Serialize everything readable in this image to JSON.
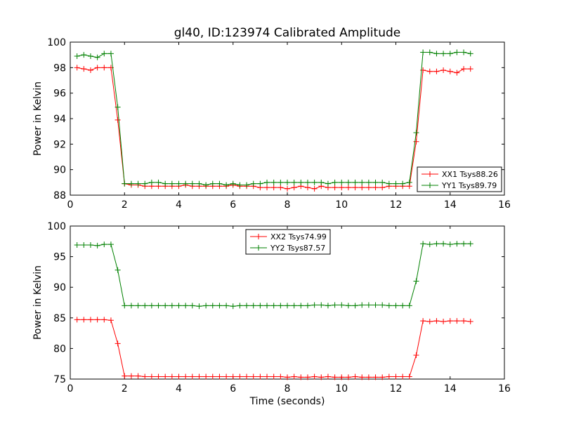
{
  "chart_data": [
    {
      "type": "line",
      "title": "gl40, ID:123974 Calibrated Amplitude",
      "xlabel": "",
      "ylabel": "Power in Kelvin",
      "xlim": [
        0,
        16
      ],
      "ylim": [
        88,
        100
      ],
      "xticks": [
        "0",
        "2",
        "4",
        "6",
        "8",
        "10",
        "12",
        "14",
        "16"
      ],
      "yticks": [
        "88",
        "90",
        "92",
        "94",
        "96",
        "98",
        "100"
      ],
      "grid": false,
      "legend_position": "lower-right",
      "x": [
        0.25,
        0.5,
        0.75,
        1.0,
        1.25,
        1.5,
        1.75,
        2.0,
        2.25,
        2.5,
        2.75,
        3.0,
        3.25,
        3.5,
        3.75,
        4.0,
        4.25,
        4.5,
        4.75,
        5.0,
        5.25,
        5.5,
        5.75,
        6.0,
        6.25,
        6.5,
        6.75,
        7.0,
        7.25,
        7.5,
        7.75,
        8.0,
        8.25,
        8.5,
        8.75,
        9.0,
        9.25,
        9.5,
        9.75,
        10.0,
        10.25,
        10.5,
        10.75,
        11.0,
        11.25,
        11.5,
        11.75,
        12.0,
        12.25,
        12.5,
        12.75,
        13.0,
        13.25,
        13.5,
        13.75,
        14.0,
        14.25,
        14.5,
        14.75
      ],
      "series": [
        {
          "name": "XX1 Tsys88.26",
          "color": "#ff0000",
          "values": [
            98.0,
            97.9,
            97.8,
            98.0,
            98.0,
            98.0,
            93.9,
            88.9,
            88.8,
            88.8,
            88.7,
            88.7,
            88.7,
            88.7,
            88.7,
            88.7,
            88.8,
            88.7,
            88.7,
            88.7,
            88.7,
            88.7,
            88.7,
            88.8,
            88.7,
            88.7,
            88.7,
            88.6,
            88.6,
            88.6,
            88.6,
            88.5,
            88.6,
            88.7,
            88.6,
            88.5,
            88.7,
            88.6,
            88.6,
            88.6,
            88.6,
            88.6,
            88.6,
            88.6,
            88.6,
            88.6,
            88.7,
            88.7,
            88.7,
            88.7,
            92.2,
            97.8,
            97.7,
            97.7,
            97.8,
            97.7,
            97.6,
            97.9,
            97.9
          ]
        },
        {
          "name": "YY1 Tsys89.79",
          "color": "#008000",
          "values": [
            98.9,
            99.0,
            98.9,
            98.8,
            99.1,
            99.1,
            94.9,
            88.9,
            88.9,
            88.9,
            88.9,
            89.0,
            89.0,
            88.9,
            88.9,
            88.9,
            88.9,
            88.9,
            88.9,
            88.8,
            88.9,
            88.9,
            88.8,
            88.9,
            88.8,
            88.8,
            88.9,
            88.9,
            89.0,
            89.0,
            89.0,
            89.0,
            89.0,
            89.0,
            89.0,
            89.0,
            89.0,
            88.9,
            89.0,
            89.0,
            89.0,
            89.0,
            89.0,
            89.0,
            89.0,
            89.0,
            88.9,
            88.9,
            88.9,
            89.0,
            92.9,
            99.2,
            99.2,
            99.1,
            99.1,
            99.1,
            99.2,
            99.2,
            99.1
          ]
        }
      ]
    },
    {
      "type": "line",
      "title": "",
      "xlabel": "Time (seconds)",
      "ylabel": "Power in Kelvin",
      "xlim": [
        0,
        16
      ],
      "ylim": [
        75,
        100
      ],
      "xticks": [
        "0",
        "2",
        "4",
        "6",
        "8",
        "10",
        "12",
        "14",
        "16"
      ],
      "yticks": [
        "75",
        "80",
        "85",
        "90",
        "95",
        "100"
      ],
      "grid": false,
      "legend_position": "upper-center",
      "x": [
        0.25,
        0.5,
        0.75,
        1.0,
        1.25,
        1.5,
        1.75,
        2.0,
        2.25,
        2.5,
        2.75,
        3.0,
        3.25,
        3.5,
        3.75,
        4.0,
        4.25,
        4.5,
        4.75,
        5.0,
        5.25,
        5.5,
        5.75,
        6.0,
        6.25,
        6.5,
        6.75,
        7.0,
        7.25,
        7.5,
        7.75,
        8.0,
        8.25,
        8.5,
        8.75,
        9.0,
        9.25,
        9.5,
        9.75,
        10.0,
        10.25,
        10.5,
        10.75,
        11.0,
        11.25,
        11.5,
        11.75,
        12.0,
        12.25,
        12.5,
        12.75,
        13.0,
        13.25,
        13.5,
        13.75,
        14.0,
        14.25,
        14.5,
        14.75
      ],
      "series": [
        {
          "name": "XX2 Tsys74.99",
          "color": "#ff0000",
          "values": [
            84.7,
            84.7,
            84.7,
            84.7,
            84.7,
            84.6,
            80.8,
            75.5,
            75.5,
            75.5,
            75.4,
            75.4,
            75.4,
            75.4,
            75.4,
            75.4,
            75.4,
            75.4,
            75.4,
            75.4,
            75.4,
            75.4,
            75.4,
            75.4,
            75.4,
            75.4,
            75.4,
            75.4,
            75.4,
            75.4,
            75.4,
            75.3,
            75.4,
            75.3,
            75.3,
            75.4,
            75.3,
            75.4,
            75.3,
            75.3,
            75.3,
            75.4,
            75.3,
            75.3,
            75.3,
            75.3,
            75.4,
            75.4,
            75.4,
            75.4,
            78.9,
            84.5,
            84.4,
            84.5,
            84.4,
            84.5,
            84.5,
            84.5,
            84.4
          ]
        },
        {
          "name": "YY2 Tsys87.57",
          "color": "#008000",
          "values": [
            96.9,
            96.9,
            96.9,
            96.8,
            97.0,
            97.0,
            92.8,
            87.0,
            87.0,
            87.0,
            87.0,
            87.0,
            87.0,
            87.0,
            87.0,
            87.0,
            87.0,
            87.0,
            86.9,
            87.0,
            87.0,
            87.0,
            87.0,
            86.9,
            87.0,
            87.0,
            87.0,
            87.0,
            87.0,
            87.0,
            87.0,
            87.0,
            87.0,
            87.0,
            87.0,
            87.1,
            87.1,
            87.0,
            87.1,
            87.1,
            87.0,
            87.0,
            87.1,
            87.1,
            87.1,
            87.1,
            87.0,
            87.0,
            87.0,
            87.0,
            91.0,
            97.1,
            97.0,
            97.1,
            97.1,
            97.0,
            97.1,
            97.1,
            97.1
          ]
        }
      ]
    }
  ]
}
